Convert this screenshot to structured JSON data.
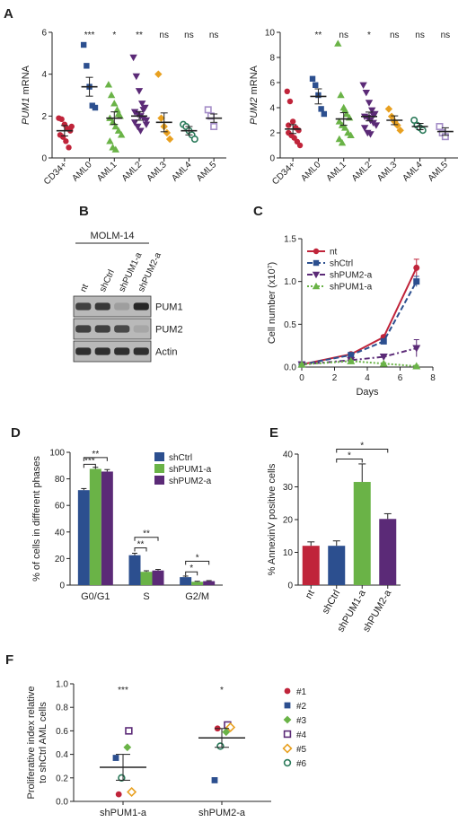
{
  "panels": {
    "A": {
      "label": "A"
    },
    "B": {
      "label": "B",
      "cell_line": "MOLM-14",
      "lanes": [
        "nt",
        "shCtrl",
        "shPUM1-a",
        "shPUM2-a"
      ],
      "rows": [
        {
          "name": "PUM1",
          "bands": [
            0.8,
            0.85,
            0.25,
            0.95
          ]
        },
        {
          "name": "PUM2",
          "bands": [
            0.8,
            0.8,
            0.75,
            0.2
          ]
        },
        {
          "name": "Actin",
          "bands": [
            0.9,
            0.9,
            0.9,
            0.9
          ]
        }
      ]
    },
    "C": {
      "label": "C"
    },
    "D": {
      "label": "D"
    },
    "E": {
      "label": "E"
    },
    "F": {
      "label": "F"
    }
  },
  "chart_data": [
    {
      "id": "A1",
      "type": "scatter",
      "ylabel": "PUM1 mRNA",
      "ylabel_italic": "PUM1",
      "ylabel_rest": " mRNA",
      "ylim": [
        0,
        6
      ],
      "yticks": [
        0,
        2,
        4,
        6
      ],
      "categories": [
        "CD34+",
        "AML0",
        "AML1",
        "AML2",
        "AML3",
        "AML4",
        "AML5"
      ],
      "significance": [
        "",
        "***",
        "*",
        "**",
        "ns",
        "ns",
        "ns"
      ],
      "colors": [
        "#c0243a",
        "#2c4f8f",
        "#6ab347",
        "#5b2a77",
        "#e8a020",
        "#2b7a5a",
        "#a48dc7"
      ],
      "markers": [
        "circle",
        "square",
        "triangle",
        "triangle-down",
        "diamond",
        "circle-open",
        "square-open"
      ],
      "means": [
        1.3,
        3.4,
        1.9,
        2.0,
        1.7,
        1.3,
        1.9
      ],
      "sem": [
        0.25,
        0.45,
        0.3,
        0.2,
        0.45,
        0.2,
        0.2
      ],
      "points": [
        [
          1.9,
          1.85,
          1.6,
          1.4,
          1.3,
          1.1,
          1.0,
          0.8,
          0.5,
          1.5
        ],
        [
          5.4,
          4.4,
          3.4,
          2.5,
          2.4
        ],
        [
          3.5,
          3.0,
          2.6,
          2.3,
          2.0,
          1.9,
          1.7,
          1.5,
          1.3,
          1.1,
          0.8,
          0.5,
          0.4,
          2.1
        ],
        [
          4.8,
          3.9,
          3.2,
          2.6,
          2.4,
          2.2,
          2.1,
          2.0,
          1.9,
          1.8,
          1.7,
          1.5,
          1.3,
          2.3,
          1.6
        ],
        [
          4.0,
          1.9,
          1.5,
          1.2,
          0.9
        ],
        [
          1.6,
          1.5,
          1.3,
          1.1,
          0.9
        ],
        [
          2.3,
          2.0,
          1.5
        ]
      ]
    },
    {
      "id": "A2",
      "type": "scatter",
      "ylabel": "PUM2 mRNA",
      "ylabel_italic": "PUM2",
      "ylabel_rest": " mRNA",
      "ylim": [
        0,
        10
      ],
      "yticks": [
        0,
        2,
        4,
        6,
        8,
        10
      ],
      "categories": [
        "CD34+",
        "AML0",
        "AML1",
        "AML2",
        "AML3",
        "AML4",
        "AML5"
      ],
      "significance": [
        "",
        "**",
        "ns",
        "*",
        "ns",
        "ns",
        "ns"
      ],
      "colors": [
        "#c0243a",
        "#2c4f8f",
        "#6ab347",
        "#5b2a77",
        "#e8a020",
        "#2b7a5a",
        "#a48dc7"
      ],
      "markers": [
        "circle",
        "square",
        "triangle",
        "triangle-down",
        "diamond",
        "circle-open",
        "square-open"
      ],
      "means": [
        2.3,
        4.9,
        3.1,
        3.3,
        3.0,
        2.5,
        2.1
      ],
      "sem": [
        0.35,
        0.6,
        0.5,
        0.35,
        0.35,
        0.25,
        0.3
      ],
      "points": [
        [
          5.3,
          4.5,
          2.9,
          2.4,
          2.2,
          2.0,
          1.8,
          1.6,
          1.3,
          1.0,
          2.6
        ],
        [
          6.3,
          5.8,
          5.0,
          3.9,
          3.5
        ],
        [
          9.1,
          5.0,
          4.0,
          3.5,
          3.2,
          2.9,
          2.6,
          2.4,
          2.0,
          1.8,
          1.5,
          1.2,
          3.8
        ],
        [
          5.8,
          5.2,
          4.4,
          3.8,
          3.5,
          3.3,
          3.2,
          3.0,
          2.8,
          2.6,
          2.4,
          2.0,
          1.9,
          3.4
        ],
        [
          3.9,
          3.3,
          2.9,
          2.6,
          2.2
        ],
        [
          3.0,
          2.6,
          2.4,
          2.2
        ],
        [
          2.5,
          2.0,
          1.7
        ]
      ]
    },
    {
      "id": "C",
      "type": "line",
      "xlabel": "Days",
      "ylabel": "Cell number (x10",
      "ylabel_sup": "7",
      "ylabel_close": ")",
      "xlim": [
        0,
        8
      ],
      "xticks": [
        0,
        2,
        4,
        6,
        8
      ],
      "ylim": [
        0,
        1.5
      ],
      "yticks": [
        0.0,
        0.5,
        1.0,
        1.5
      ],
      "x": [
        0,
        3,
        5,
        7
      ],
      "series": [
        {
          "name": "nt",
          "color": "#c0243a",
          "marker": "circle",
          "dash": "",
          "values": [
            0.03,
            0.15,
            0.35,
            1.16
          ],
          "err": [
            0.01,
            0.01,
            0.02,
            0.1
          ]
        },
        {
          "name": "shCtrl",
          "color": "#2c4f8f",
          "marker": "square",
          "dash": "6,3",
          "values": [
            0.03,
            0.14,
            0.3,
            1.0
          ],
          "err": [
            0.01,
            0.01,
            0.02,
            0.06
          ]
        },
        {
          "name": "shPUM2-a",
          "color": "#5b2a77",
          "marker": "triangle-down",
          "dash": "6,3,2,3",
          "values": [
            0.03,
            0.08,
            0.12,
            0.22
          ],
          "err": [
            0.01,
            0.01,
            0.02,
            0.1
          ]
        },
        {
          "name": "shPUM1-a",
          "color": "#6ab347",
          "marker": "triangle",
          "dash": "2,2",
          "values": [
            0.03,
            0.07,
            0.04,
            0.01
          ],
          "err": [
            0.01,
            0.01,
            0.01,
            0.01
          ]
        }
      ]
    },
    {
      "id": "D",
      "type": "bar",
      "ylabel": "% of cells in different phases",
      "ylim": [
        0,
        100
      ],
      "yticks": [
        0,
        20,
        40,
        60,
        80,
        100
      ],
      "categories": [
        "G0/G1",
        "S",
        "G2/M"
      ],
      "series": [
        {
          "name": "shCtrl",
          "color": "#2c4f8f",
          "values": [
            71.5,
            22.5,
            6.0
          ],
          "err": [
            1.2,
            1.5,
            0.8
          ]
        },
        {
          "name": "shPUM1-a",
          "color": "#6ab347",
          "values": [
            87.5,
            10.0,
            2.5
          ],
          "err": [
            1.2,
            0.8,
            0.4
          ]
        },
        {
          "name": "shPUM2-a",
          "color": "#5b2a77",
          "values": [
            85.5,
            11.0,
            3.0
          ],
          "err": [
            1.5,
            0.8,
            0.4
          ]
        }
      ],
      "brackets": [
        {
          "cat": 0,
          "from": 0,
          "to": 1,
          "level": 91,
          "label": "***"
        },
        {
          "cat": 0,
          "from": 0,
          "to": 2,
          "level": 96,
          "label": "**"
        },
        {
          "cat": 1,
          "from": 0,
          "to": 1,
          "level": 28,
          "label": "**"
        },
        {
          "cat": 1,
          "from": 0,
          "to": 2,
          "level": 36,
          "label": "**"
        },
        {
          "cat": 2,
          "from": 0,
          "to": 1,
          "level": 10,
          "label": "*"
        },
        {
          "cat": 2,
          "from": 0,
          "to": 2,
          "level": 18,
          "label": "*"
        }
      ]
    },
    {
      "id": "E",
      "type": "bar",
      "ylabel": "% AnnexinV positive cells",
      "ylim": [
        0,
        40
      ],
      "yticks": [
        0,
        10,
        20,
        30,
        40
      ],
      "categories": [
        "nt",
        "shCtrl",
        "shPUM1-a",
        "shPUM2-a"
      ],
      "colors": [
        "#c0243a",
        "#2c4f8f",
        "#6ab347",
        "#5b2a77"
      ],
      "values": [
        12.0,
        12.0,
        31.5,
        20.2
      ],
      "err": [
        1.2,
        1.5,
        5.5,
        1.6
      ],
      "brackets": [
        {
          "from": 1,
          "to": 2,
          "level": 38.5,
          "label": "*"
        },
        {
          "from": 1,
          "to": 3,
          "level": 41.5,
          "label": "*"
        }
      ]
    },
    {
      "id": "F",
      "type": "scatter",
      "ylabel_line1": "Proliferative index relative",
      "ylabel_line2": "to shCtrl AML cells",
      "ylim": [
        0,
        1.0
      ],
      "yticks": [
        0.0,
        0.2,
        0.4,
        0.6,
        0.8,
        1.0
      ],
      "categories": [
        "shPUM1-a",
        "shPUM2-a"
      ],
      "significance": [
        "***",
        "*"
      ],
      "means": [
        0.29,
        0.54
      ],
      "sem": [
        0.11,
        0.08
      ],
      "legend": [
        "#1",
        "#2",
        "#3",
        "#4",
        "#5",
        "#6"
      ],
      "legend_colors": [
        "#c0243a",
        "#2c4f8f",
        "#6ab347",
        "#5b2a77",
        "#e8a020",
        "#2b7a5a"
      ],
      "legend_markers": [
        "circle",
        "square",
        "diamond",
        "square-open",
        "diamond-open",
        "circle-open"
      ],
      "points": [
        [
          0.06,
          0.37,
          0.46,
          0.6,
          0.08,
          0.2
        ],
        [
          0.62,
          0.18,
          0.59,
          0.65,
          0.63,
          0.47
        ]
      ]
    }
  ]
}
